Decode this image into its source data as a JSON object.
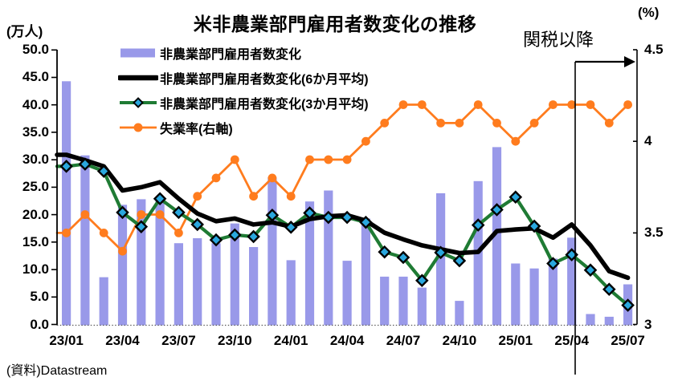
{
  "chart_data": {
    "type": "combo-bar-line",
    "title": "米非農業部門雇用者数変化の推移",
    "ylabel_left": "(万人)",
    "ylabel_right": "(%)",
    "ylim_left": [
      0,
      50
    ],
    "ylim_right": [
      3,
      4.5
    ],
    "y_ticks_left": [
      "0.0",
      "5.0",
      "10.0",
      "15.0",
      "20.0",
      "25.0",
      "30.0",
      "35.0",
      "40.0",
      "45.0",
      "50.0"
    ],
    "y_ticks_right": [
      "3",
      "3.5",
      "4",
      "4.5"
    ],
    "categories": [
      "23/01",
      "23/02",
      "23/03",
      "23/04",
      "23/05",
      "23/06",
      "23/07",
      "23/08",
      "23/09",
      "23/10",
      "23/11",
      "23/12",
      "24/01",
      "24/02",
      "24/03",
      "24/04",
      "24/05",
      "24/06",
      "24/07",
      "24/08",
      "24/09",
      "24/10",
      "24/11",
      "24/12",
      "25/01",
      "25/02",
      "25/03",
      "25/04",
      "25/05",
      "25/06",
      "25/07"
    ],
    "x_tick_labels": [
      "23/01",
      "23/04",
      "23/07",
      "23/10",
      "24/01",
      "24/04",
      "24/07",
      "24/10",
      "25/01",
      "25/04",
      "25/07"
    ],
    "x_tick_step": 3,
    "grid": false,
    "legend_position": "top-left",
    "series": [
      {
        "name": "非農業部門雇用者数変化",
        "type": "bar",
        "axis": "left",
        "color": "#9999E9",
        "values": [
          44.3,
          30.8,
          8.6,
          21.8,
          22.8,
          22.5,
          14.8,
          15.7,
          14.8,
          18.4,
          14.1,
          26.8,
          11.7,
          22.4,
          24.4,
          11.6,
          19.3,
          8.7,
          8.7,
          6.7,
          23.9,
          4.3,
          26.1,
          32.3,
          11.1,
          10.2,
          12.0,
          15.8,
          1.9,
          1.4,
          7.3
        ]
      },
      {
        "name": "非農業部門雇用者数変化(6か月平均)",
        "type": "line",
        "axis": "left",
        "color": "#000000",
        "values": [
          30.9,
          29.9,
          28.8,
          24.4,
          25.0,
          25.9,
          22.9,
          20.2,
          18.8,
          19.3,
          18.2,
          18.6,
          17.8,
          19.2,
          19.7,
          19.9,
          18.9,
          16.7,
          15.5,
          14.4,
          13.7,
          13.0,
          13.2,
          17.0,
          17.3,
          17.5,
          15.8,
          18.2,
          14.4,
          9.7,
          8.5
        ]
      },
      {
        "name": "非農業部門雇用者数変化(3か月平均)",
        "type": "line",
        "axis": "left",
        "color": "#1F7B34",
        "marker": "diamond",
        "marker_color": "#2AA7DE",
        "values": [
          28.8,
          29.2,
          27.9,
          20.4,
          17.8,
          22.9,
          20.4,
          18.2,
          15.4,
          16.3,
          16.0,
          19.9,
          17.7,
          20.3,
          19.5,
          19.5,
          18.6,
          13.2,
          12.2,
          8.0,
          13.1,
          11.6,
          18.1,
          20.9,
          23.2,
          17.9,
          11.1,
          12.7,
          9.9,
          6.4,
          3.5
        ]
      },
      {
        "name": "失業率(右軸)",
        "type": "line",
        "axis": "right",
        "color": "#FF7C1E",
        "marker": "circle",
        "values": [
          3.5,
          3.6,
          3.5,
          3.4,
          3.6,
          3.6,
          3.5,
          3.7,
          3.8,
          3.9,
          3.7,
          3.8,
          3.7,
          3.9,
          3.9,
          3.9,
          4.0,
          4.1,
          4.2,
          4.2,
          4.1,
          4.1,
          4.2,
          4.1,
          4.0,
          4.1,
          4.2,
          4.2,
          4.2,
          4.1,
          4.2
        ]
      }
    ],
    "annotation": {
      "label": "関税以降",
      "x_category": "25/04",
      "arrow": "right-to-axis"
    },
    "source": "(資料)Datastream"
  }
}
